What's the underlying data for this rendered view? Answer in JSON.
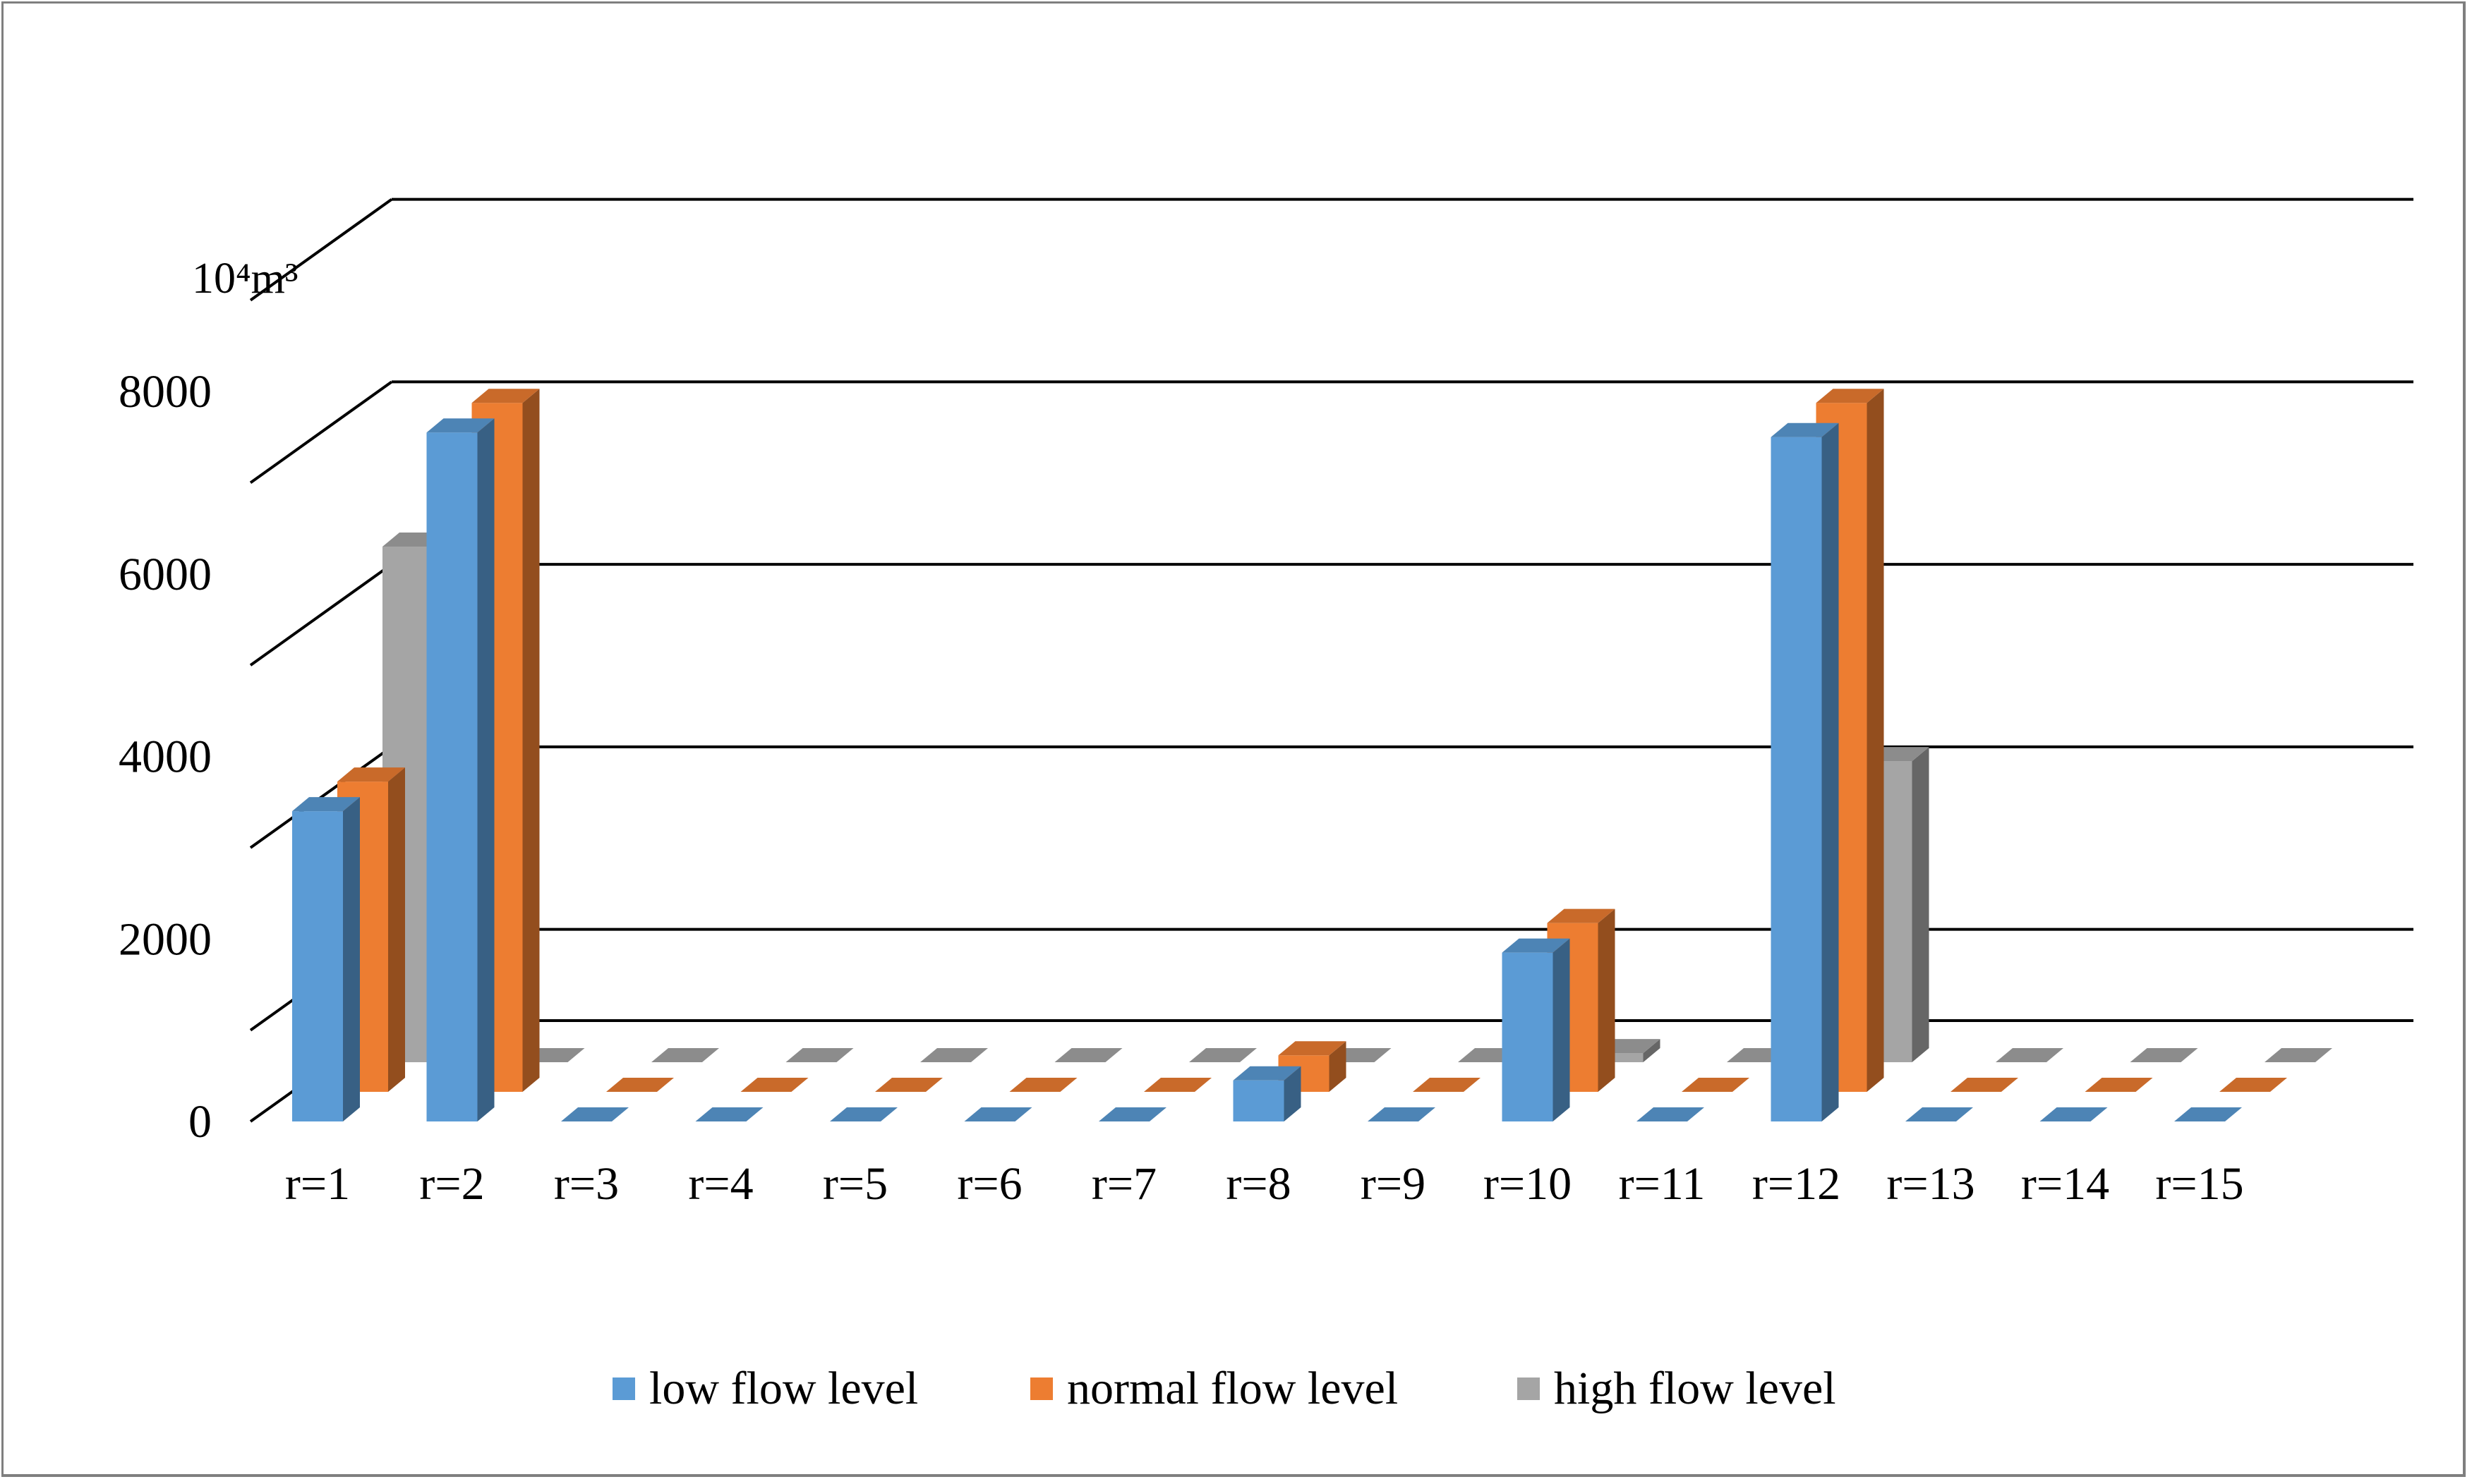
{
  "chart_data": {
    "type": "bar",
    "style": "3d-clustered-column",
    "unit_label": "10⁴m³",
    "categories": [
      "r=1",
      "r=2",
      "r=3",
      "r=4",
      "r=5",
      "r=6",
      "r=7",
      "r=8",
      "r=9",
      "r=10",
      "r=11",
      "r=12",
      "r=13",
      "r=14",
      "r=15"
    ],
    "series": [
      {
        "name": "low flow level",
        "color": "#5b9bd5",
        "values": [
          3400,
          7550,
          0,
          0,
          0,
          0,
          0,
          450,
          0,
          1850,
          0,
          7500,
          0,
          0,
          0
        ]
      },
      {
        "name": "normal flow level",
        "color": "#ed7d31",
        "values": [
          3400,
          7550,
          0,
          0,
          0,
          0,
          0,
          400,
          0,
          1850,
          0,
          7550,
          0,
          0,
          0
        ]
      },
      {
        "name": "high flow level",
        "color": "#a5a5a5",
        "values": [
          5650,
          0,
          0,
          0,
          0,
          0,
          0,
          0,
          0,
          100,
          0,
          3300,
          0,
          0,
          0
        ]
      }
    ],
    "y_ticks": [
      "0",
      "2000",
      "4000",
      "6000",
      "8000"
    ],
    "ylim": [
      0,
      9000
    ],
    "grid": true,
    "legend_position": "bottom"
  }
}
